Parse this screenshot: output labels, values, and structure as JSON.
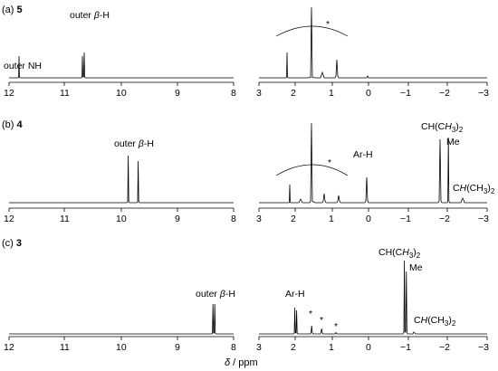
{
  "panels": [
    {
      "id": "a",
      "label": "(a)",
      "compound": "5",
      "left_ticks": [
        "12",
        "11",
        "10",
        "9",
        "8"
      ],
      "right_ticks": [
        "3",
        "2",
        "1",
        "0",
        "−1",
        "−2",
        "−3"
      ],
      "annotations": [
        "outer NH",
        "outer β-H",
        "*"
      ]
    },
    {
      "id": "b",
      "label": "(b)",
      "compound": "4",
      "left_ticks": [
        "12",
        "11",
        "10",
        "9",
        "8"
      ],
      "right_ticks": [
        "3",
        "2",
        "1",
        "0",
        "−1",
        "−2",
        "−3"
      ],
      "annotations": [
        "outer β-H",
        "*",
        "Ar-H",
        "CH(CH3)2",
        "Me",
        "CH(CH3)2"
      ]
    },
    {
      "id": "c",
      "label": "(c)",
      "compound": "3",
      "left_ticks": [
        "12",
        "11",
        "10",
        "9",
        "8"
      ],
      "right_ticks": [
        "3",
        "2",
        "1",
        "0",
        "−1",
        "−2",
        "−3"
      ],
      "annotations": [
        "outer β-H",
        "Ar-H",
        "*",
        "*",
        "*",
        "CH(CH3)2",
        "Me",
        "CH(CH3)2"
      ]
    }
  ],
  "x_axis_title": "δ / ppm"
}
